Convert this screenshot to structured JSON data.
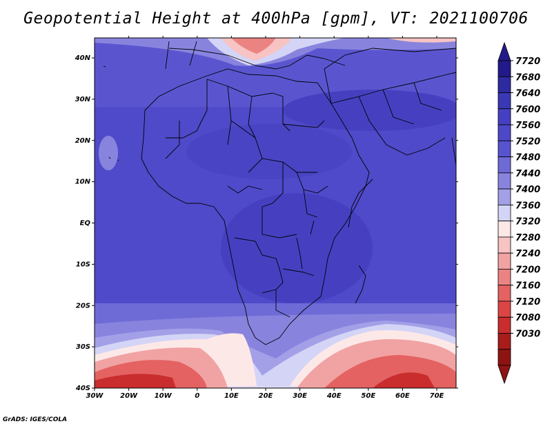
{
  "title": "Geopotential Height at 400hPa [gpm], VT: 2021100706",
  "credit": "GrADS: IGES/COLA",
  "map": {
    "x_ticks": [
      "30W",
      "20W",
      "10W",
      "0",
      "10E",
      "20E",
      "30E",
      "40E",
      "50E",
      "60E",
      "70E"
    ],
    "y_ticks": [
      "40N",
      "30N",
      "20N",
      "10N",
      "EQ",
      "10S",
      "20S",
      "30S",
      "40S"
    ]
  },
  "colorbar": {
    "labels": [
      "7720",
      "7680",
      "7640",
      "7600",
      "7560",
      "7520",
      "7480",
      "7440",
      "7400",
      "7360",
      "7320",
      "7280",
      "7240",
      "7200",
      "7160",
      "7120",
      "7080",
      "7030"
    ],
    "colors": [
      "#221a8a",
      "#2e2aa0",
      "#3a38b4",
      "#4540c2",
      "#4d48c8",
      "#5853cf",
      "#6e6ad6",
      "#8884de",
      "#a3a0e8",
      "#d4d4f6",
      "#fde8e8",
      "#f7c3c3",
      "#f1a3a3",
      "#eb8383",
      "#e46262",
      "#dc4545",
      "#c92d2d",
      "#a81c1c",
      "#8e1414"
    ]
  }
}
